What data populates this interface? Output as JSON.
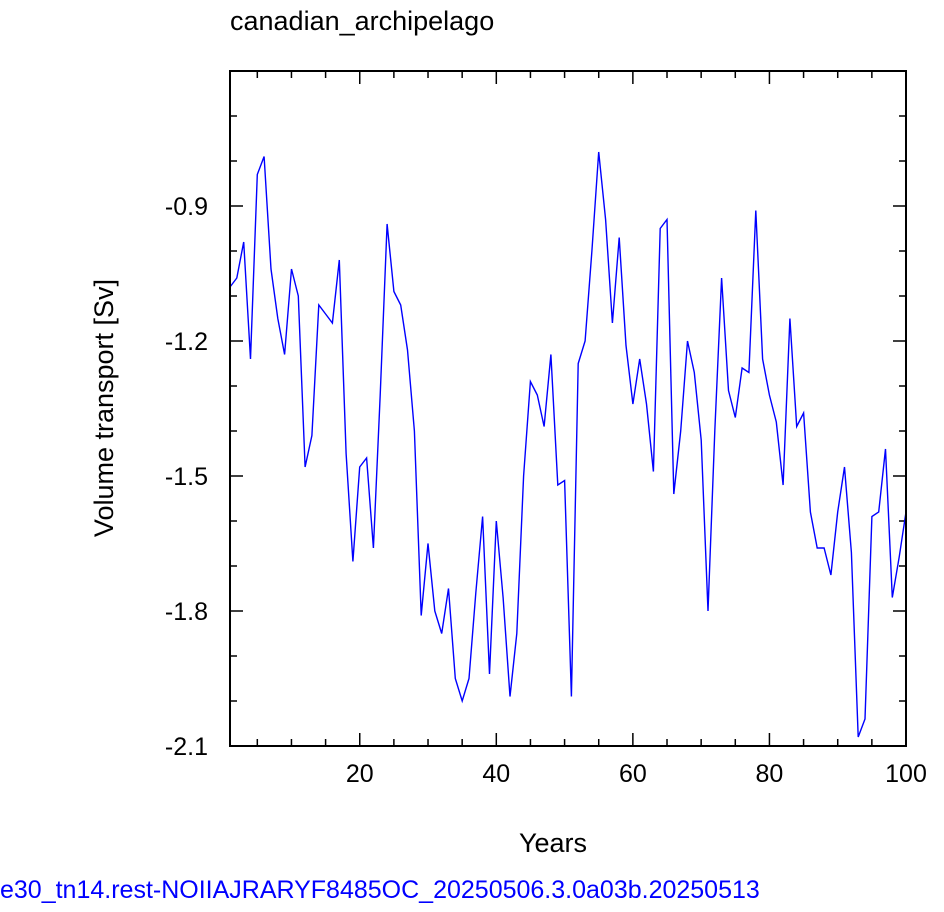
{
  "chart_data": {
    "type": "line",
    "title": "canadian_archipelago",
    "xlabel": "Years",
    "ylabel": "Volume transport [Sv]",
    "xlim": [
      1,
      100
    ],
    "ylim": [
      -2.1,
      -0.6
    ],
    "x_ticks": [
      20,
      40,
      60,
      80,
      100
    ],
    "y_ticks": [
      -0.9,
      -1.2,
      -1.5,
      -1.8,
      -2.1
    ],
    "x_tick_labels": [
      "20",
      "40",
      "60",
      "80",
      "100"
    ],
    "y_tick_labels": [
      "-0.9",
      "-1.2",
      "-1.5",
      "-1.8",
      "-2.1"
    ],
    "grid": false,
    "line_color": "#0000ff",
    "series": [
      {
        "x": [
          1,
          2,
          3,
          4,
          5,
          6,
          7,
          8,
          9,
          10,
          11,
          12,
          13,
          14,
          15,
          16,
          17,
          18,
          19,
          20,
          21,
          22,
          23,
          24,
          25,
          26,
          27,
          28,
          29,
          30,
          31,
          32,
          33,
          34,
          35,
          36,
          37,
          38,
          39,
          40,
          41,
          42,
          43,
          44,
          45,
          46,
          47,
          48,
          49,
          50,
          51,
          52,
          53,
          54,
          55,
          56,
          57,
          58,
          59,
          60,
          61,
          62,
          63,
          64,
          65,
          66,
          67,
          68,
          69,
          70,
          71,
          72,
          73,
          74,
          75,
          76,
          77,
          78,
          79,
          80,
          81,
          82,
          83,
          84,
          85,
          86,
          87,
          88,
          89,
          90,
          91,
          92,
          93,
          94,
          95,
          96,
          97,
          98,
          99,
          100
        ],
        "values": [
          -1.08,
          -1.06,
          -0.98,
          -1.24,
          -0.83,
          -0.79,
          -1.04,
          -1.15,
          -1.23,
          -1.04,
          -1.1,
          -1.48,
          -1.41,
          -1.12,
          -1.14,
          -1.16,
          -1.02,
          -1.45,
          -1.69,
          -1.48,
          -1.46,
          -1.66,
          -1.32,
          -0.94,
          -1.09,
          -1.12,
          -1.22,
          -1.4,
          -1.81,
          -1.65,
          -1.8,
          -1.85,
          -1.75,
          -1.95,
          -2.0,
          -1.95,
          -1.76,
          -1.59,
          -1.94,
          -1.6,
          -1.77,
          -1.99,
          -1.85,
          -1.5,
          -1.29,
          -1.32,
          -1.39,
          -1.23,
          -1.52,
          -1.51,
          -1.99,
          -1.25,
          -1.2,
          -1.0,
          -0.78,
          -0.93,
          -1.16,
          -0.97,
          -1.21,
          -1.34,
          -1.24,
          -1.34,
          -1.49,
          -0.95,
          -0.93,
          -1.54,
          -1.4,
          -1.2,
          -1.27,
          -1.42,
          -1.8,
          -1.4,
          -1.06,
          -1.31,
          -1.37,
          -1.26,
          -1.27,
          -0.91,
          -1.24,
          -1.32,
          -1.38,
          -1.52,
          -1.15,
          -1.39,
          -1.36,
          -1.58,
          -1.66,
          -1.66,
          -1.72,
          -1.58,
          -1.48,
          -1.67,
          -2.08,
          -2.04,
          -1.59,
          -1.58,
          -1.44,
          -1.77,
          -1.68,
          -1.58
        ]
      }
    ]
  },
  "footer": {
    "text": "e30_tn14.rest-NOIIAJRARYF8485OC_20250506.3.0a03b.20250513",
    "color": "#0000ff"
  }
}
